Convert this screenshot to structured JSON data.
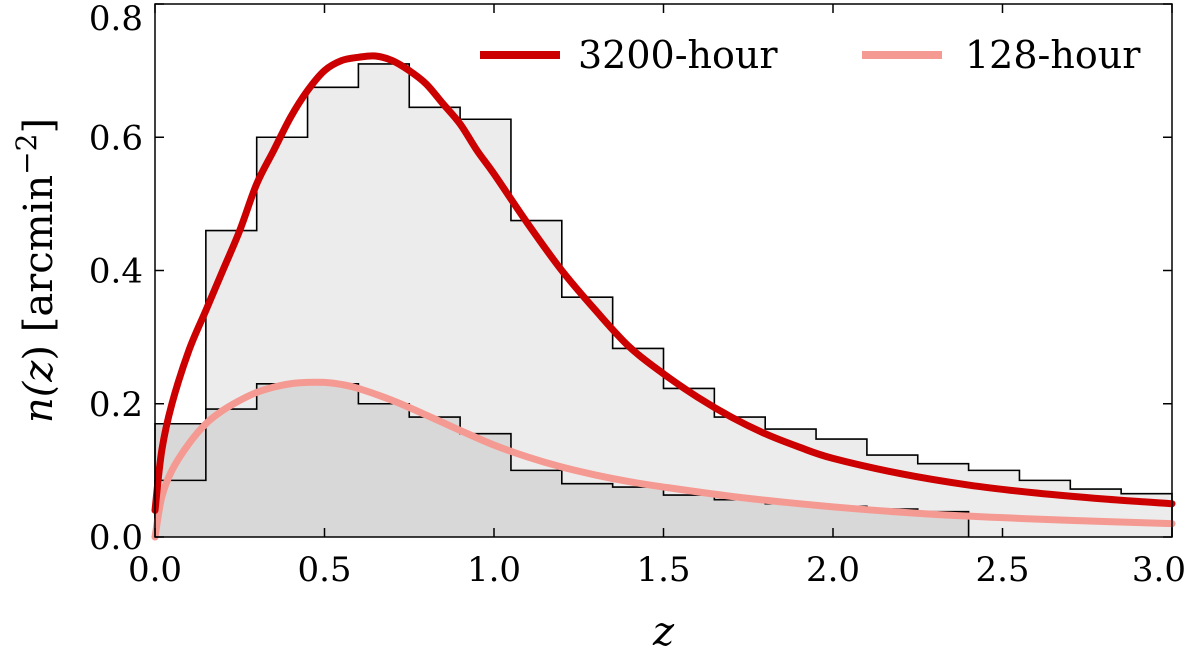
{
  "chart_data": {
    "type": "line",
    "xlabel": "z",
    "ylabel": {
      "prefix": "n(",
      "var": "z",
      "unit_open": ") [arcmin",
      "exponent": "−2",
      "close": "]"
    },
    "xlim": [
      0.0,
      3.0
    ],
    "ylim": [
      0.0,
      0.8
    ],
    "xticks": [
      "0.0",
      "0.5",
      "1.0",
      "1.5",
      "2.0",
      "2.5",
      "3.0"
    ],
    "yticks": [
      "0.0",
      "0.2",
      "0.4",
      "0.6",
      "0.8"
    ],
    "grid": false,
    "legend_position": "top-right",
    "histograms": [
      {
        "fill": "#ececec",
        "bin_edges": [
          0.0,
          0.15,
          0.3,
          0.45,
          0.6,
          0.75,
          0.9,
          1.05,
          1.2,
          1.35,
          1.5,
          1.65,
          1.8,
          1.95,
          2.1,
          2.25,
          2.4,
          2.55,
          2.7,
          2.85,
          3.0
        ],
        "counts": [
          0.085,
          0.46,
          0.6,
          0.675,
          0.71,
          0.645,
          0.627,
          0.475,
          0.36,
          0.283,
          0.223,
          0.18,
          0.162,
          0.147,
          0.123,
          0.11,
          0.1,
          0.085,
          0.072,
          0.065
        ]
      },
      {
        "fill": "#d8d8d8",
        "bin_edges": [
          0.0,
          0.15,
          0.3,
          0.45,
          0.6,
          0.75,
          0.9,
          1.05,
          1.2,
          1.35,
          1.5,
          1.65,
          1.8,
          1.95,
          2.1,
          2.25,
          2.4
        ],
        "counts": [
          0.17,
          0.192,
          0.23,
          0.23,
          0.2,
          0.18,
          0.155,
          0.1,
          0.08,
          0.075,
          0.063,
          0.056,
          0.05,
          0.046,
          0.042,
          0.038
        ]
      }
    ],
    "series": [
      {
        "name": "3200-hour",
        "color": "#cc0000",
        "x": [
          0.0,
          0.02,
          0.05,
          0.1,
          0.15,
          0.2,
          0.25,
          0.3,
          0.35,
          0.4,
          0.45,
          0.5,
          0.55,
          0.6,
          0.65,
          0.7,
          0.75,
          0.8,
          0.85,
          0.9,
          0.95,
          1.0,
          1.1,
          1.2,
          1.3,
          1.4,
          1.5,
          1.6,
          1.7,
          1.8,
          1.9,
          2.0,
          2.2,
          2.4,
          2.6,
          2.8,
          3.0
        ],
        "y": [
          0.04,
          0.13,
          0.2,
          0.28,
          0.34,
          0.4,
          0.46,
          0.53,
          0.58,
          0.63,
          0.67,
          0.7,
          0.715,
          0.72,
          0.722,
          0.715,
          0.7,
          0.68,
          0.65,
          0.62,
          0.58,
          0.545,
          0.47,
          0.4,
          0.34,
          0.285,
          0.245,
          0.21,
          0.18,
          0.155,
          0.135,
          0.118,
          0.095,
          0.078,
          0.066,
          0.057,
          0.05
        ]
      },
      {
        "name": "128-hour",
        "color": "#f59a92",
        "x": [
          0.0,
          0.02,
          0.05,
          0.1,
          0.15,
          0.2,
          0.25,
          0.3,
          0.35,
          0.4,
          0.45,
          0.5,
          0.55,
          0.6,
          0.7,
          0.8,
          0.9,
          1.0,
          1.1,
          1.2,
          1.3,
          1.4,
          1.5,
          1.7,
          1.9,
          2.1,
          2.3,
          2.5,
          2.7,
          3.0
        ],
        "y": [
          0.0,
          0.06,
          0.1,
          0.14,
          0.17,
          0.19,
          0.205,
          0.217,
          0.225,
          0.23,
          0.232,
          0.232,
          0.229,
          0.223,
          0.205,
          0.183,
          0.16,
          0.138,
          0.12,
          0.105,
          0.093,
          0.083,
          0.075,
          0.061,
          0.05,
          0.041,
          0.034,
          0.029,
          0.025,
          0.02
        ]
      }
    ]
  }
}
